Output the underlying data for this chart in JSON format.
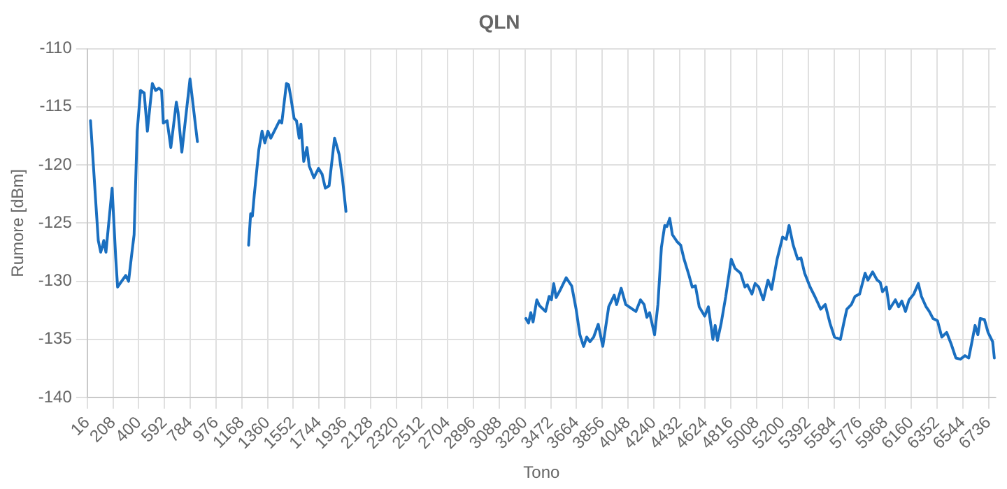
{
  "chart_data": {
    "type": "line",
    "title": "QLN",
    "xlabel": "Tono",
    "ylabel": "Rumore [dBm]",
    "xlim": [
      16,
      6790
    ],
    "xticks": [
      16,
      208,
      400,
      592,
      784,
      976,
      1168,
      1360,
      1552,
      1744,
      1936,
      2128,
      2320,
      2512,
      2704,
      2896,
      3088,
      3280,
      3472,
      3664,
      3856,
      4048,
      4240,
      4432,
      4624,
      4816,
      5008,
      5200,
      5392,
      5584,
      5776,
      5968,
      6160,
      6352,
      6544,
      6736
    ],
    "ylim": [
      -140,
      -110
    ],
    "yticks": [
      -140,
      -135,
      -130,
      -125,
      -120,
      -115,
      -110
    ],
    "grid": true,
    "legend": false,
    "marker": "none",
    "line_style": "solid",
    "series": [
      {
        "color": "#1a6fc0",
        "x": [
          40,
          78,
          98,
          116,
          129,
          139,
          155,
          201,
          228,
          242,
          272,
          303,
          324,
          344,
          365,
          388,
          413,
          440,
          464,
          501,
          526,
          550,
          570,
          583,
          611,
          639,
          680,
          693,
          721,
          782,
          837,
          1000,
          1219,
          1234,
          1247,
          1261,
          1295,
          1319,
          1340,
          1363,
          1384,
          1449,
          1466,
          1501,
          1517,
          1534,
          1558,
          1576,
          1596,
          1609,
          1630,
          1654,
          1671,
          1706,
          1740,
          1767,
          1791,
          1819,
          1860,
          1894,
          1918,
          1945,
          2500,
          3286,
          3306,
          3323,
          3340,
          3368,
          3388,
          3433,
          3460,
          3477,
          3494,
          3512,
          3545,
          3587,
          3628,
          3661,
          3689,
          3717,
          3740,
          3764,
          3792,
          3826,
          3860,
          3904,
          3945,
          3963,
          3997,
          4031,
          4082,
          4107,
          4141,
          4168,
          4189,
          4209,
          4246,
          4271,
          4297,
          4322,
          4338,
          4359,
          4379,
          4414,
          4441,
          4466,
          4503,
          4527,
          4551,
          4579,
          4620,
          4647,
          4681,
          4698,
          4715,
          4743,
          4777,
          4818,
          4846,
          4887,
          4920,
          4938,
          4972,
          4996,
          5023,
          5057,
          5092,
          5119,
          5160,
          5201,
          5228,
          5249,
          5280,
          5313,
          5338,
          5365,
          5406,
          5441,
          5485,
          5519,
          5554,
          5588,
          5632,
          5657,
          5680,
          5714,
          5741,
          5775,
          5816,
          5837,
          5872,
          5906,
          5929,
          5946,
          5974,
          5998,
          6042,
          6066,
          6090,
          6117,
          6144,
          6179,
          6213,
          6236,
          6271,
          6295,
          6322,
          6356,
          6388,
          6424,
          6458,
          6493,
          6527,
          6561,
          6589,
          6613,
          6636,
          6657,
          6675,
          6706,
          6733,
          6767,
          6780
        ],
        "values": [
          -116.2,
          -123,
          -126.5,
          -127.5,
          -127,
          -126.5,
          -127.5,
          -122,
          -128,
          -130.5,
          -130,
          -129.5,
          -130,
          -128,
          -126,
          -117.1,
          -113.6,
          -113.8,
          -117.1,
          -113,
          -113.6,
          -113.4,
          -113.6,
          -116.4,
          -116.2,
          -118.5,
          -114.6,
          -115.5,
          -118.9,
          -112.6,
          -118,
          null,
          -126.9,
          -124.2,
          -124.4,
          -122.6,
          -118.7,
          -117.1,
          -118.1,
          -117.1,
          -117.7,
          -116.2,
          -116.4,
          -113,
          -113.1,
          -114.2,
          -116,
          -116.2,
          -117.7,
          -116.5,
          -119.7,
          -118.5,
          -120.1,
          -121.1,
          -120.3,
          -120.8,
          -122,
          -121.8,
          -117.7,
          -119.1,
          -121.1,
          -124,
          null,
          -133.2,
          -133.6,
          -132.7,
          -133.5,
          -131.6,
          -132.1,
          -132.6,
          -131.3,
          -131.6,
          -130.2,
          -131.4,
          -130.7,
          -129.7,
          -130.4,
          -132.4,
          -134.6,
          -135.6,
          -134.8,
          -135.2,
          -134.8,
          -133.7,
          -135.6,
          -132.2,
          -131.2,
          -132,
          -130.6,
          -132,
          -132.4,
          -132.6,
          -131.6,
          -132,
          -133.1,
          -132.7,
          -134.6,
          -132,
          -127.1,
          -125.2,
          -125.3,
          -124.6,
          -126,
          -126.6,
          -126.9,
          -128.1,
          -129.5,
          -130.5,
          -130.4,
          -132.2,
          -133,
          -132.2,
          -135,
          -133.8,
          -135.1,
          -133.6,
          -131.3,
          -128.1,
          -128.9,
          -129.3,
          -130.5,
          -130.3,
          -131.1,
          -130.2,
          -130.5,
          -131.6,
          -129.9,
          -130.7,
          -128.1,
          -126.2,
          -126.4,
          -125.2,
          -126.9,
          -128.1,
          -128,
          -129.3,
          -130.5,
          -131.3,
          -132.4,
          -132,
          -133.6,
          -134.8,
          -135,
          -133.6,
          -132.4,
          -132,
          -131.3,
          -131.1,
          -129.3,
          -129.9,
          -129.2,
          -129.9,
          -130.1,
          -130.9,
          -130.5,
          -132.4,
          -131.6,
          -132.2,
          -131.7,
          -132.6,
          -131.6,
          -131.1,
          -130.2,
          -131.3,
          -132.2,
          -132.6,
          -133.2,
          -133.4,
          -134.8,
          -134.4,
          -135.4,
          -136.6,
          -136.7,
          -136.4,
          -136.6,
          -135.2,
          -133.8,
          -134.6,
          -133.2,
          -133.3,
          -134.4,
          -135.2,
          -136.6
        ]
      }
    ]
  }
}
